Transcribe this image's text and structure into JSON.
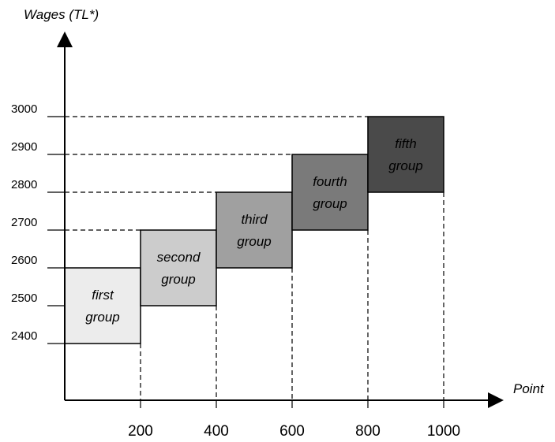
{
  "chart_data": {
    "type": "bar",
    "ylabel": "Wages (TL*)",
    "xlabel": "Point",
    "x_ticks": [
      "200",
      "400",
      "600",
      "800",
      "1000"
    ],
    "y_ticks": [
      "2400",
      "2500",
      "2600",
      "2700",
      "2800",
      "2900",
      "3000"
    ],
    "xlim": [
      0,
      1000
    ],
    "ylim": [
      2400,
      3000
    ],
    "grid": false,
    "groups": [
      {
        "label_lines": [
          "first",
          "group"
        ],
        "x_range": [
          0,
          200
        ],
        "wage_range": [
          2400,
          2600
        ],
        "color": "#ececec"
      },
      {
        "label_lines": [
          "second",
          "group"
        ],
        "x_range": [
          200,
          400
        ],
        "wage_range": [
          2500,
          2700
        ],
        "color": "#cccccc"
      },
      {
        "label_lines": [
          "third",
          "group"
        ],
        "x_range": [
          400,
          600
        ],
        "wage_range": [
          2600,
          2800
        ],
        "color": "#a0a0a0"
      },
      {
        "label_lines": [
          "fourth",
          "group"
        ],
        "x_range": [
          600,
          800
        ],
        "wage_range": [
          2700,
          2900
        ],
        "color": "#7a7a7a"
      },
      {
        "label_lines": [
          "fifth",
          "group"
        ],
        "x_range": [
          800,
          1000
        ],
        "wage_range": [
          2800,
          3000
        ],
        "color": "#4a4a4a"
      }
    ]
  }
}
